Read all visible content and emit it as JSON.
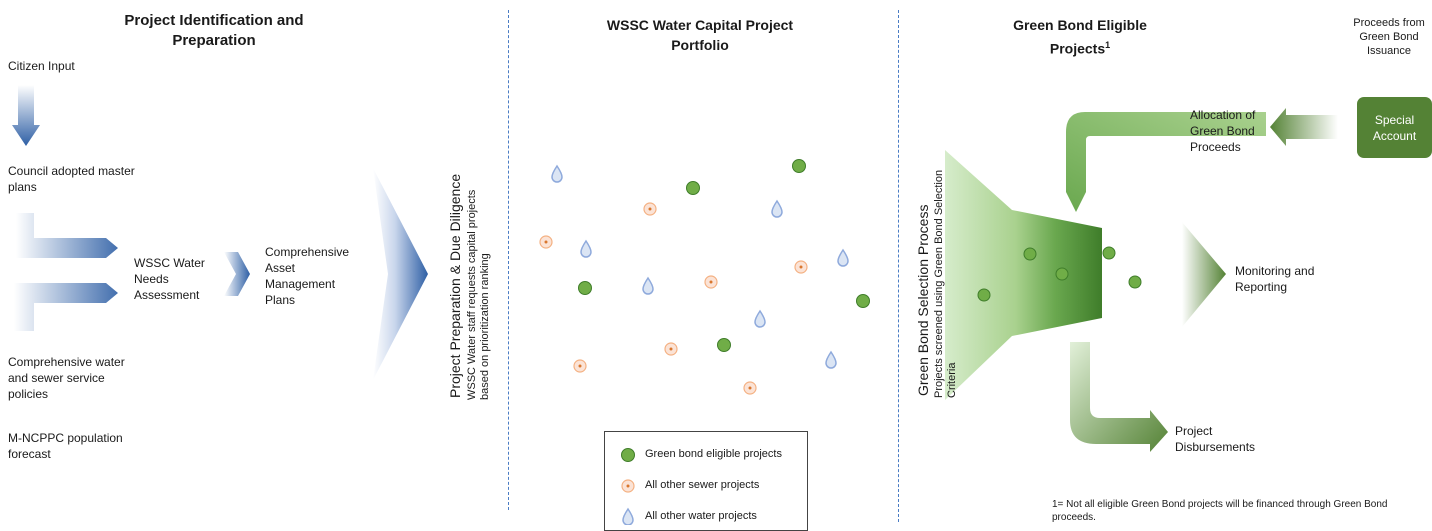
{
  "col1": {
    "title": "Project Identification and Preparation",
    "citizen_input": "Citizen Input",
    "council_plans": "Council adopted master plans",
    "needs_assessment": "WSSC Water Needs Assessment",
    "policies": "Comprehensive water and sewer service policies",
    "forecast": "M-NCPPC population forecast",
    "asset_plans": "Comprehensive Asset Management Plans"
  },
  "due_diligence": {
    "title": "Project Preparation & Due Diligence",
    "subtitle": "WSSC Water staff requests capital projects based on prioritization ranking"
  },
  "portfolio": {
    "title": "WSSC Water Capital Project Portfolio"
  },
  "green": {
    "title": "Green Bond Eligible Projects",
    "footnote_mark": "1",
    "selection_title": "Green Bond Selection Process",
    "selection_sub": "Projects screened using Green Bond Selection Criteria",
    "proceeds": "Proceeds from Green Bond Issuance",
    "special_account": "Special Account",
    "allocation": "Allocation of Green Bond Proceeds",
    "monitoring": "Monitoring and Reporting",
    "disbursements": "Project Disbursements",
    "footnote": "1= Not all eligible Green Bond projects will be financed through Green Bond proceeds."
  },
  "legend": {
    "green": "Green bond eligible projects",
    "sewer": "All other sewer projects",
    "water": "All other water projects"
  },
  "colors": {
    "green": "#548235",
    "green_dot": "#70ad47",
    "blue": "#2e5fa5",
    "sewer_fill": "#fbe3d6",
    "sewer_stroke": "#f4b183",
    "water": "#8faadc"
  }
}
